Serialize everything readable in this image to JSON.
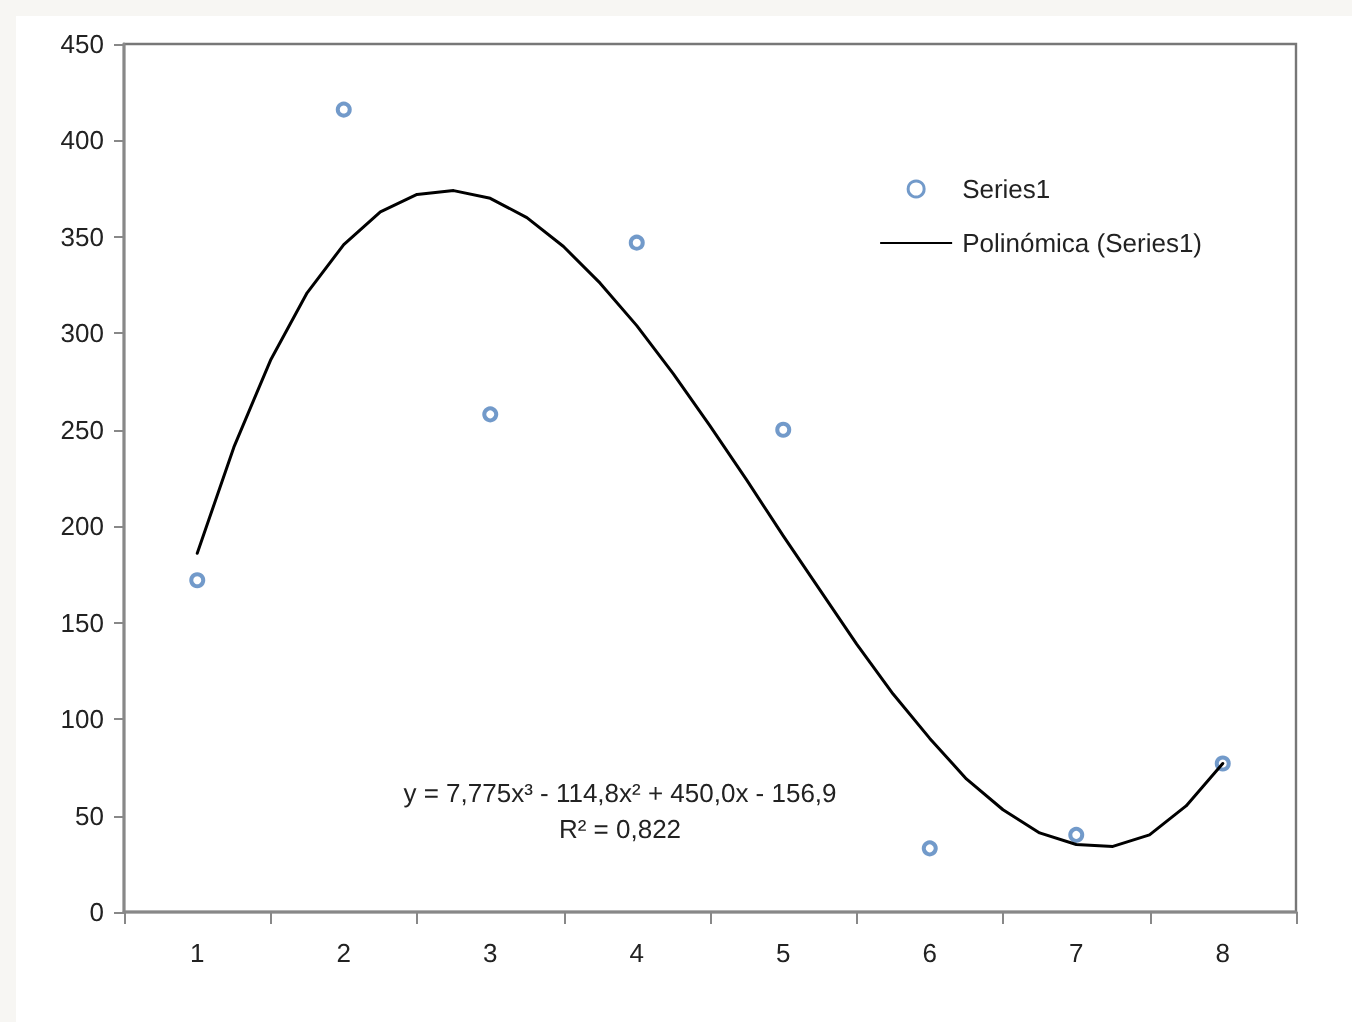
{
  "chart_data": {
    "type": "scatter",
    "x": [
      1,
      2,
      3,
      4,
      5,
      6,
      7,
      8
    ],
    "series": [
      {
        "name": "Series1",
        "color": "#4f81bd",
        "marker": "circle",
        "values": [
          172,
          416,
          258,
          347,
          250,
          33,
          40,
          77
        ]
      },
      {
        "name": "Polinómica (Series1)",
        "type": "line",
        "color": "#000000",
        "marker": "none",
        "line_style": "solid",
        "x": [
          1,
          1.25,
          1.5,
          1.75,
          2,
          2.25,
          2.5,
          2.75,
          3,
          3.25,
          3.5,
          3.75,
          4,
          4.25,
          4.5,
          4.75,
          5,
          5.25,
          5.5,
          5.75,
          6,
          6.25,
          6.5,
          6.75,
          7,
          7.25,
          7.5,
          7.75,
          8
        ],
        "values": [
          186,
          241,
          286,
          321,
          346,
          363,
          372,
          374,
          370,
          360,
          345,
          326,
          304,
          279,
          252,
          224,
          195,
          167,
          139,
          113,
          90,
          69,
          53,
          41,
          35,
          34,
          40,
          55,
          77
        ]
      }
    ],
    "xlim": [
      0.5,
      8.5
    ],
    "xticks": [
      1,
      2,
      3,
      4,
      5,
      6,
      7,
      8
    ],
    "ylim": [
      0,
      450
    ],
    "yticks": [
      0,
      50,
      100,
      150,
      200,
      250,
      300,
      350,
      400,
      450
    ],
    "grid": false,
    "legend": "top right",
    "annotations": [
      "y = 7,775x³ - 114,8x² + 450,0x - 156,9",
      "R² = 0,822"
    ]
  }
}
